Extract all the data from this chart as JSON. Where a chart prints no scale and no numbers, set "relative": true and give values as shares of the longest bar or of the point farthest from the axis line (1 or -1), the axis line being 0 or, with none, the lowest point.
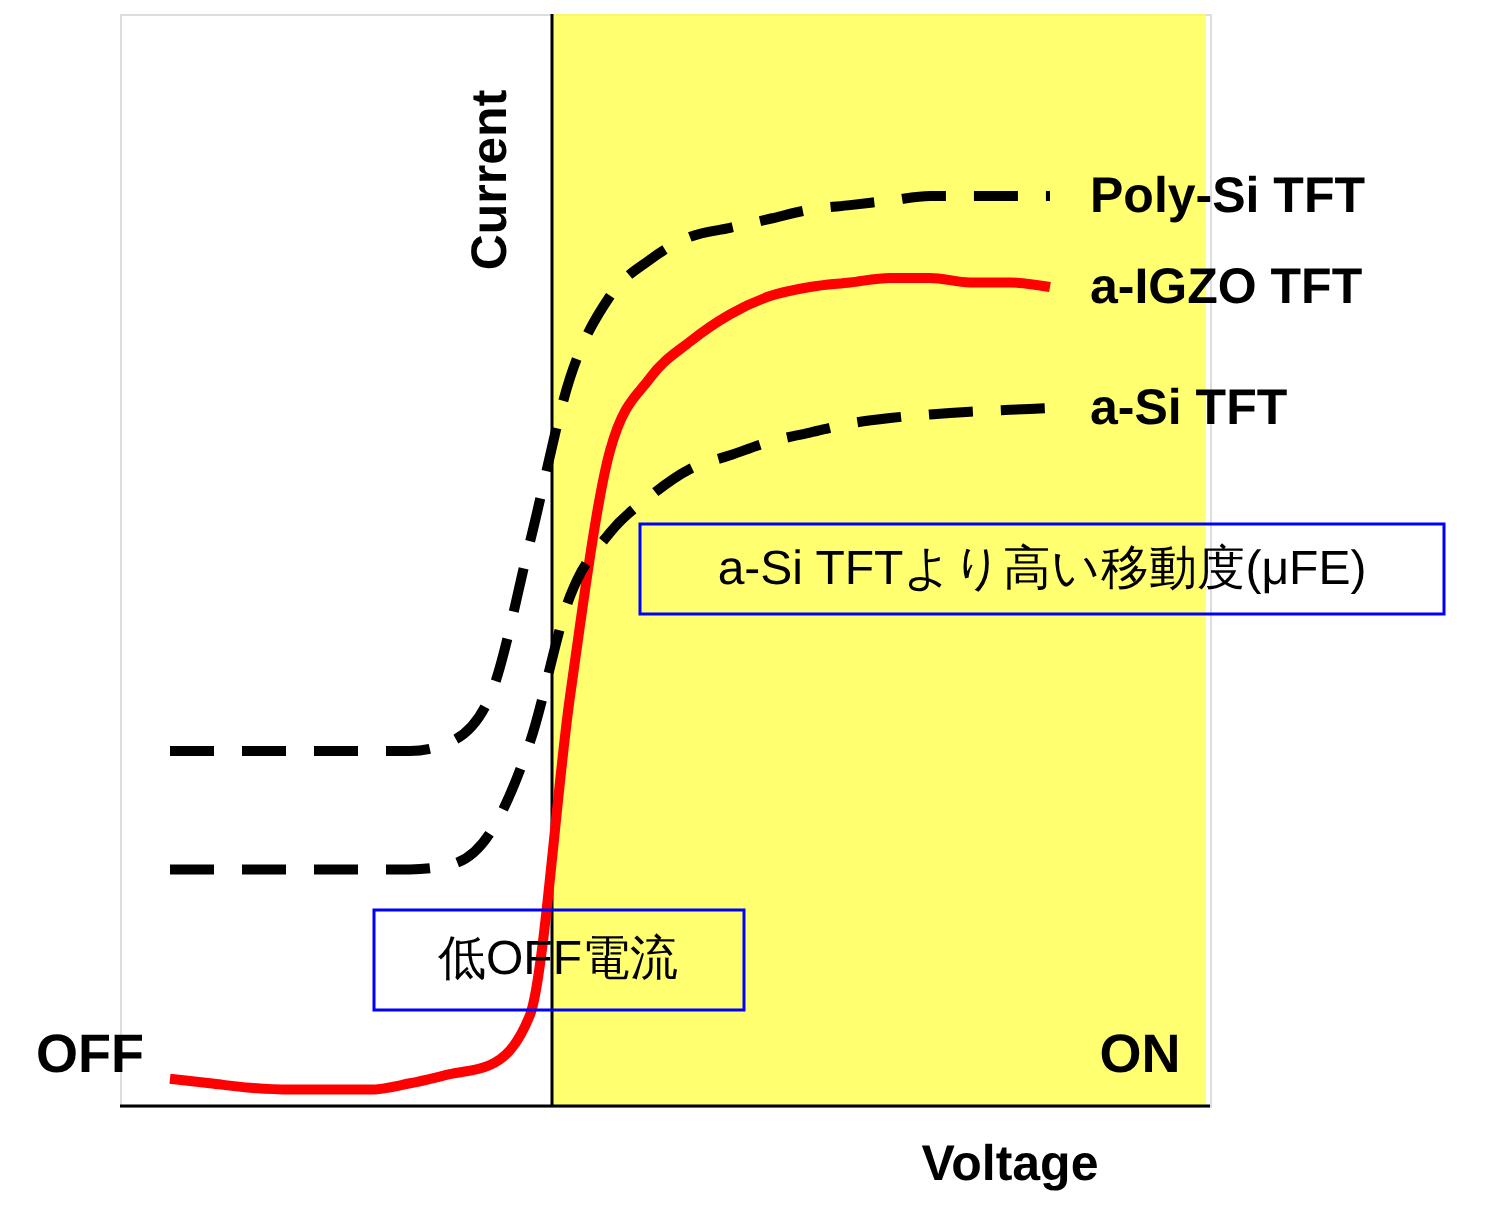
{
  "chart_data": {
    "type": "line",
    "relative": true,
    "xlabel": "Voltage",
    "ylabel": "Current",
    "categories": [
      null,
      null,
      null,
      null,
      null,
      null,
      null,
      null,
      null,
      null,
      null,
      null,
      null,
      null,
      null,
      null,
      null,
      null,
      null,
      null,
      null,
      null,
      null,
      null,
      null,
      null,
      null
    ],
    "series": [
      {
        "name": "Poly-Si TFT",
        "color": "#000000",
        "line_style": "dashed",
        "values": [
          0.39,
          0.39,
          0.39,
          0.39,
          0.39,
          0.39,
          0.39,
          0.4,
          0.45,
          0.62,
          0.8,
          0.89,
          0.93,
          0.955,
          0.965,
          0.975,
          0.985,
          0.99,
          0.995,
          1,
          1,
          1,
          1,
          null,
          null,
          null,
          null
        ]
      },
      {
        "name": "a-IGZO TFT",
        "color": "#ff0000",
        "line_style": "solid",
        "values": [
          0.03,
          0.025,
          0.02,
          0.018,
          0.018,
          0.018,
          0.025,
          0.035,
          0.045,
          0.1,
          0.45,
          0.72,
          0.8,
          0.84,
          0.87,
          0.89,
          0.9,
          0.905,
          0.91,
          0.91,
          0.905,
          0.905,
          0.9,
          null,
          null,
          null,
          null
        ]
      },
      {
        "name": "a-Si TFT",
        "color": "#000000",
        "line_style": "dashed",
        "values": [
          0.26,
          0.26,
          0.26,
          0.26,
          0.26,
          0.26,
          0.26,
          0.265,
          0.3,
          0.4,
          0.56,
          0.63,
          0.67,
          0.7,
          0.715,
          0.73,
          0.74,
          0.75,
          0.756,
          0.76,
          0.763,
          0.765,
          0.767,
          null,
          null,
          null,
          null
        ]
      }
    ],
    "annotations": [
      "a-Si TFTより高い移動度(μFE)",
      "低OFF電流",
      "OFF",
      "ON"
    ],
    "grid": false
  }
}
